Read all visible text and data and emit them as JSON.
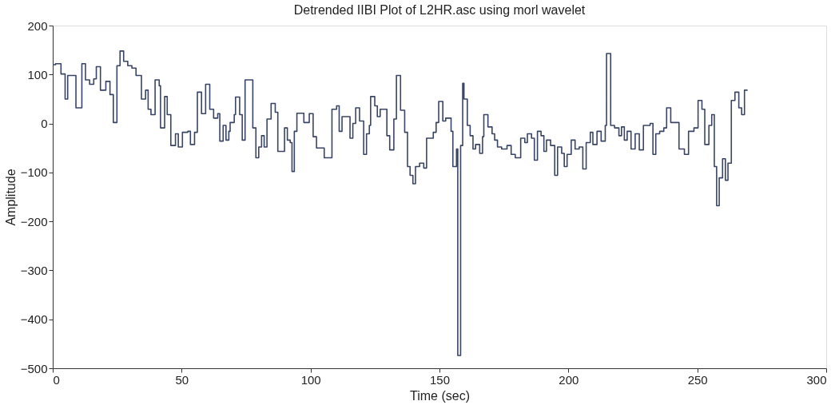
{
  "chart_data": {
    "type": "step",
    "title": "Detrended IIBI Plot of L2HR.asc using morl wavelet",
    "xlabel": "Time (sec)",
    "ylabel": "Amplitude",
    "xlim": [
      0,
      300
    ],
    "xticks": [
      0,
      50,
      100,
      150,
      200,
      250,
      300
    ],
    "ylim": [
      -500,
      200
    ],
    "yticks": [
      -500,
      -400,
      -300,
      -200,
      -100,
      0,
      100,
      200
    ],
    "grid": false,
    "series": [
      {
        "color": "#3a4566",
        "x": [
          0,
          1.1,
          3.2,
          4.8,
          5.8,
          9.0,
          11.3,
          12.7,
          14.3,
          15.9,
          16.9,
          18.5,
          20.6,
          22.2,
          23.5,
          24.9,
          26.1,
          27.5,
          29.1,
          30.7,
          32.3,
          34.4,
          36.0,
          37.0,
          38.1,
          39.7,
          41.3,
          41.8,
          43.4,
          44.4,
          45.8,
          47.6,
          48.7,
          50.3,
          52.4,
          53.4,
          55.0,
          56.1,
          57.7,
          59.3,
          60.9,
          62.4,
          64.0,
          64.8,
          66.1,
          67.2,
          68.3,
          68.8,
          70.4,
          70.9,
          72.5,
          73.5,
          74.6,
          77.6,
          78.8,
          79.9,
          81.0,
          82.0,
          83.1,
          84.7,
          86.3,
          87.3,
          89.9,
          91.0,
          92.1,
          92.8,
          93.7,
          94.7,
          97.4,
          99.5,
          101.0,
          102.3,
          105.3,
          108.3,
          110.1,
          111.1,
          112.2,
          115.3,
          116.4,
          117.5,
          119.0,
          120.6,
          121.7,
          122.8,
          123.3,
          124.9,
          125.9,
          127.0,
          129.6,
          130.7,
          132.3,
          133.3,
          134.9,
          136.5,
          137.6,
          138.6,
          139.7,
          140.7,
          142.3,
          143.9,
          145.0,
          147.6,
          148.7,
          149.7,
          151.3,
          152.4,
          154.5,
          155.2,
          156.6,
          157.1,
          158.2,
          159.0,
          159.5,
          160.8,
          161.9,
          163.0,
          164.0,
          165.6,
          166.7,
          167.2,
          168.8,
          170.4,
          171.4,
          172.5,
          174.1,
          176.2,
          177.8,
          179.4,
          181.5,
          183.1,
          184.1,
          185.7,
          186.8,
          188.0,
          189.4,
          190.5,
          191.5,
          193.1,
          194.7,
          195.8,
          197.4,
          198.4,
          199.5,
          201.1,
          202.6,
          204.2,
          205.6,
          206.9,
          208.5,
          209.5,
          211.1,
          212.7,
          214.3,
          214.8,
          216.4,
          217.9,
          219.6,
          220.6,
          221.7,
          222.8,
          224.3,
          225.9,
          227.5,
          229.1,
          231.7,
          232.8,
          233.9,
          235.4,
          237.0,
          238.1,
          239.7,
          242.9,
          245.0,
          246.6,
          248.7,
          250.3,
          251.8,
          252.9,
          254.5,
          255.6,
          256.6,
          257.5,
          258.5,
          259.8,
          260.9,
          261.9,
          263.2,
          264.6,
          266.1,
          267.2,
          268.3,
          269.5
        ],
        "values": [
          120,
          122,
          101,
          50,
          98,
          32,
          122,
          89,
          80,
          91,
          116,
          68,
          86,
          59,
          2,
          118,
          148,
          127,
          118,
          113,
          98,
          50,
          68,
          29,
          18,
          89,
          77,
          -9,
          55,
          18,
          -45,
          -21,
          -48,
          -18,
          -16,
          -43,
          -18,
          64,
          20,
          80,
          29,
          11,
          20,
          -36,
          -4,
          -34,
          -16,
          2,
          18,
          54,
          18,
          -34,
          89,
          -9,
          -70,
          -48,
          -25,
          -48,
          9,
          41,
          23,
          -57,
          -9,
          -34,
          -39,
          -98,
          -16,
          21,
          2,
          20,
          -27,
          -50,
          -70,
          29,
          36,
          -16,
          14,
          -30,
          0,
          32,
          5,
          -63,
          -21,
          -4,
          55,
          36,
          14,
          29,
          -25,
          -54,
          9,
          98,
          27,
          -18,
          -88,
          -106,
          -123,
          -88,
          -81,
          -91,
          -30,
          -18,
          2,
          45,
          5,
          11,
          -16,
          -88,
          -52,
          -474,
          -45,
          82,
          50,
          -4,
          -25,
          -52,
          -43,
          -61,
          -27,
          18,
          -7,
          -21,
          -34,
          -48,
          -52,
          -45,
          -63,
          -70,
          -30,
          -39,
          -21,
          -30,
          -75,
          -16,
          -25,
          -57,
          -34,
          -45,
          -106,
          -48,
          -61,
          -88,
          -63,
          -34,
          -52,
          -48,
          -93,
          -39,
          -18,
          -43,
          -16,
          -36,
          -4,
          143,
          -4,
          -9,
          -25,
          -7,
          -34,
          -16,
          -52,
          -21,
          -54,
          -4,
          0,
          -63,
          -21,
          -16,
          -9,
          32,
          2,
          -52,
          -63,
          -16,
          -9,
          47,
          29,
          -43,
          -4,
          18,
          -88,
          -168,
          -111,
          -72,
          -116,
          -81,
          47,
          64,
          32,
          18,
          68,
          68
        ]
      }
    ]
  }
}
